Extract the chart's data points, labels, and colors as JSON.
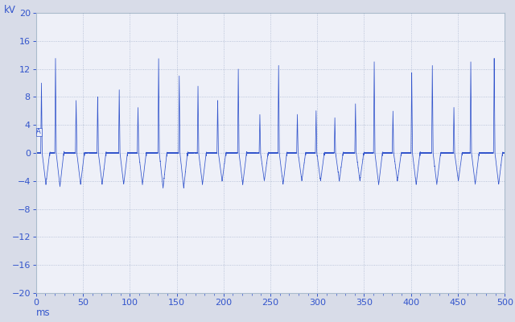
{
  "xlabel": "ms",
  "ylabel": "kV",
  "xlim": [
    0,
    500
  ],
  "ylim": [
    -20,
    20
  ],
  "xticks": [
    0,
    50,
    100,
    150,
    200,
    250,
    300,
    350,
    400,
    450,
    500
  ],
  "yticks": [
    -20,
    -16,
    -12,
    -8,
    -4,
    0,
    4,
    8,
    12,
    16,
    20
  ],
  "outer_bg": "#d8dce8",
  "plot_bg_color": "#eef0f8",
  "grid_color": "#8899bb",
  "line_color": "#3355cc",
  "spike_positions": [
    5,
    20,
    42,
    65,
    88,
    108,
    130,
    152,
    172,
    193,
    215,
    238,
    258,
    278,
    298,
    318,
    340,
    360,
    380,
    400,
    422,
    445,
    463,
    488
  ],
  "spike_heights": [
    10.0,
    13.5,
    7.5,
    8.0,
    9.0,
    6.5,
    13.5,
    11.0,
    9.5,
    7.5,
    12.0,
    5.5,
    12.5,
    5.5,
    6.0,
    5.0,
    7.0,
    13.0,
    6.0,
    11.5,
    12.5,
    6.5,
    13.0,
    13.5
  ],
  "neg_dip_heights": [
    -4.5,
    -4.8,
    -4.5,
    -4.5,
    -4.5,
    -4.5,
    -5.0,
    -5.0,
    -4.5,
    -4.0,
    -4.5,
    -4.0,
    -4.5,
    -4.0,
    -4.0,
    -4.0,
    -4.0,
    -4.5,
    -4.0,
    -4.5,
    -4.5,
    -4.0,
    -4.5,
    -4.5
  ],
  "noise_amplitude": 0.18,
  "sample_rate": 8000
}
